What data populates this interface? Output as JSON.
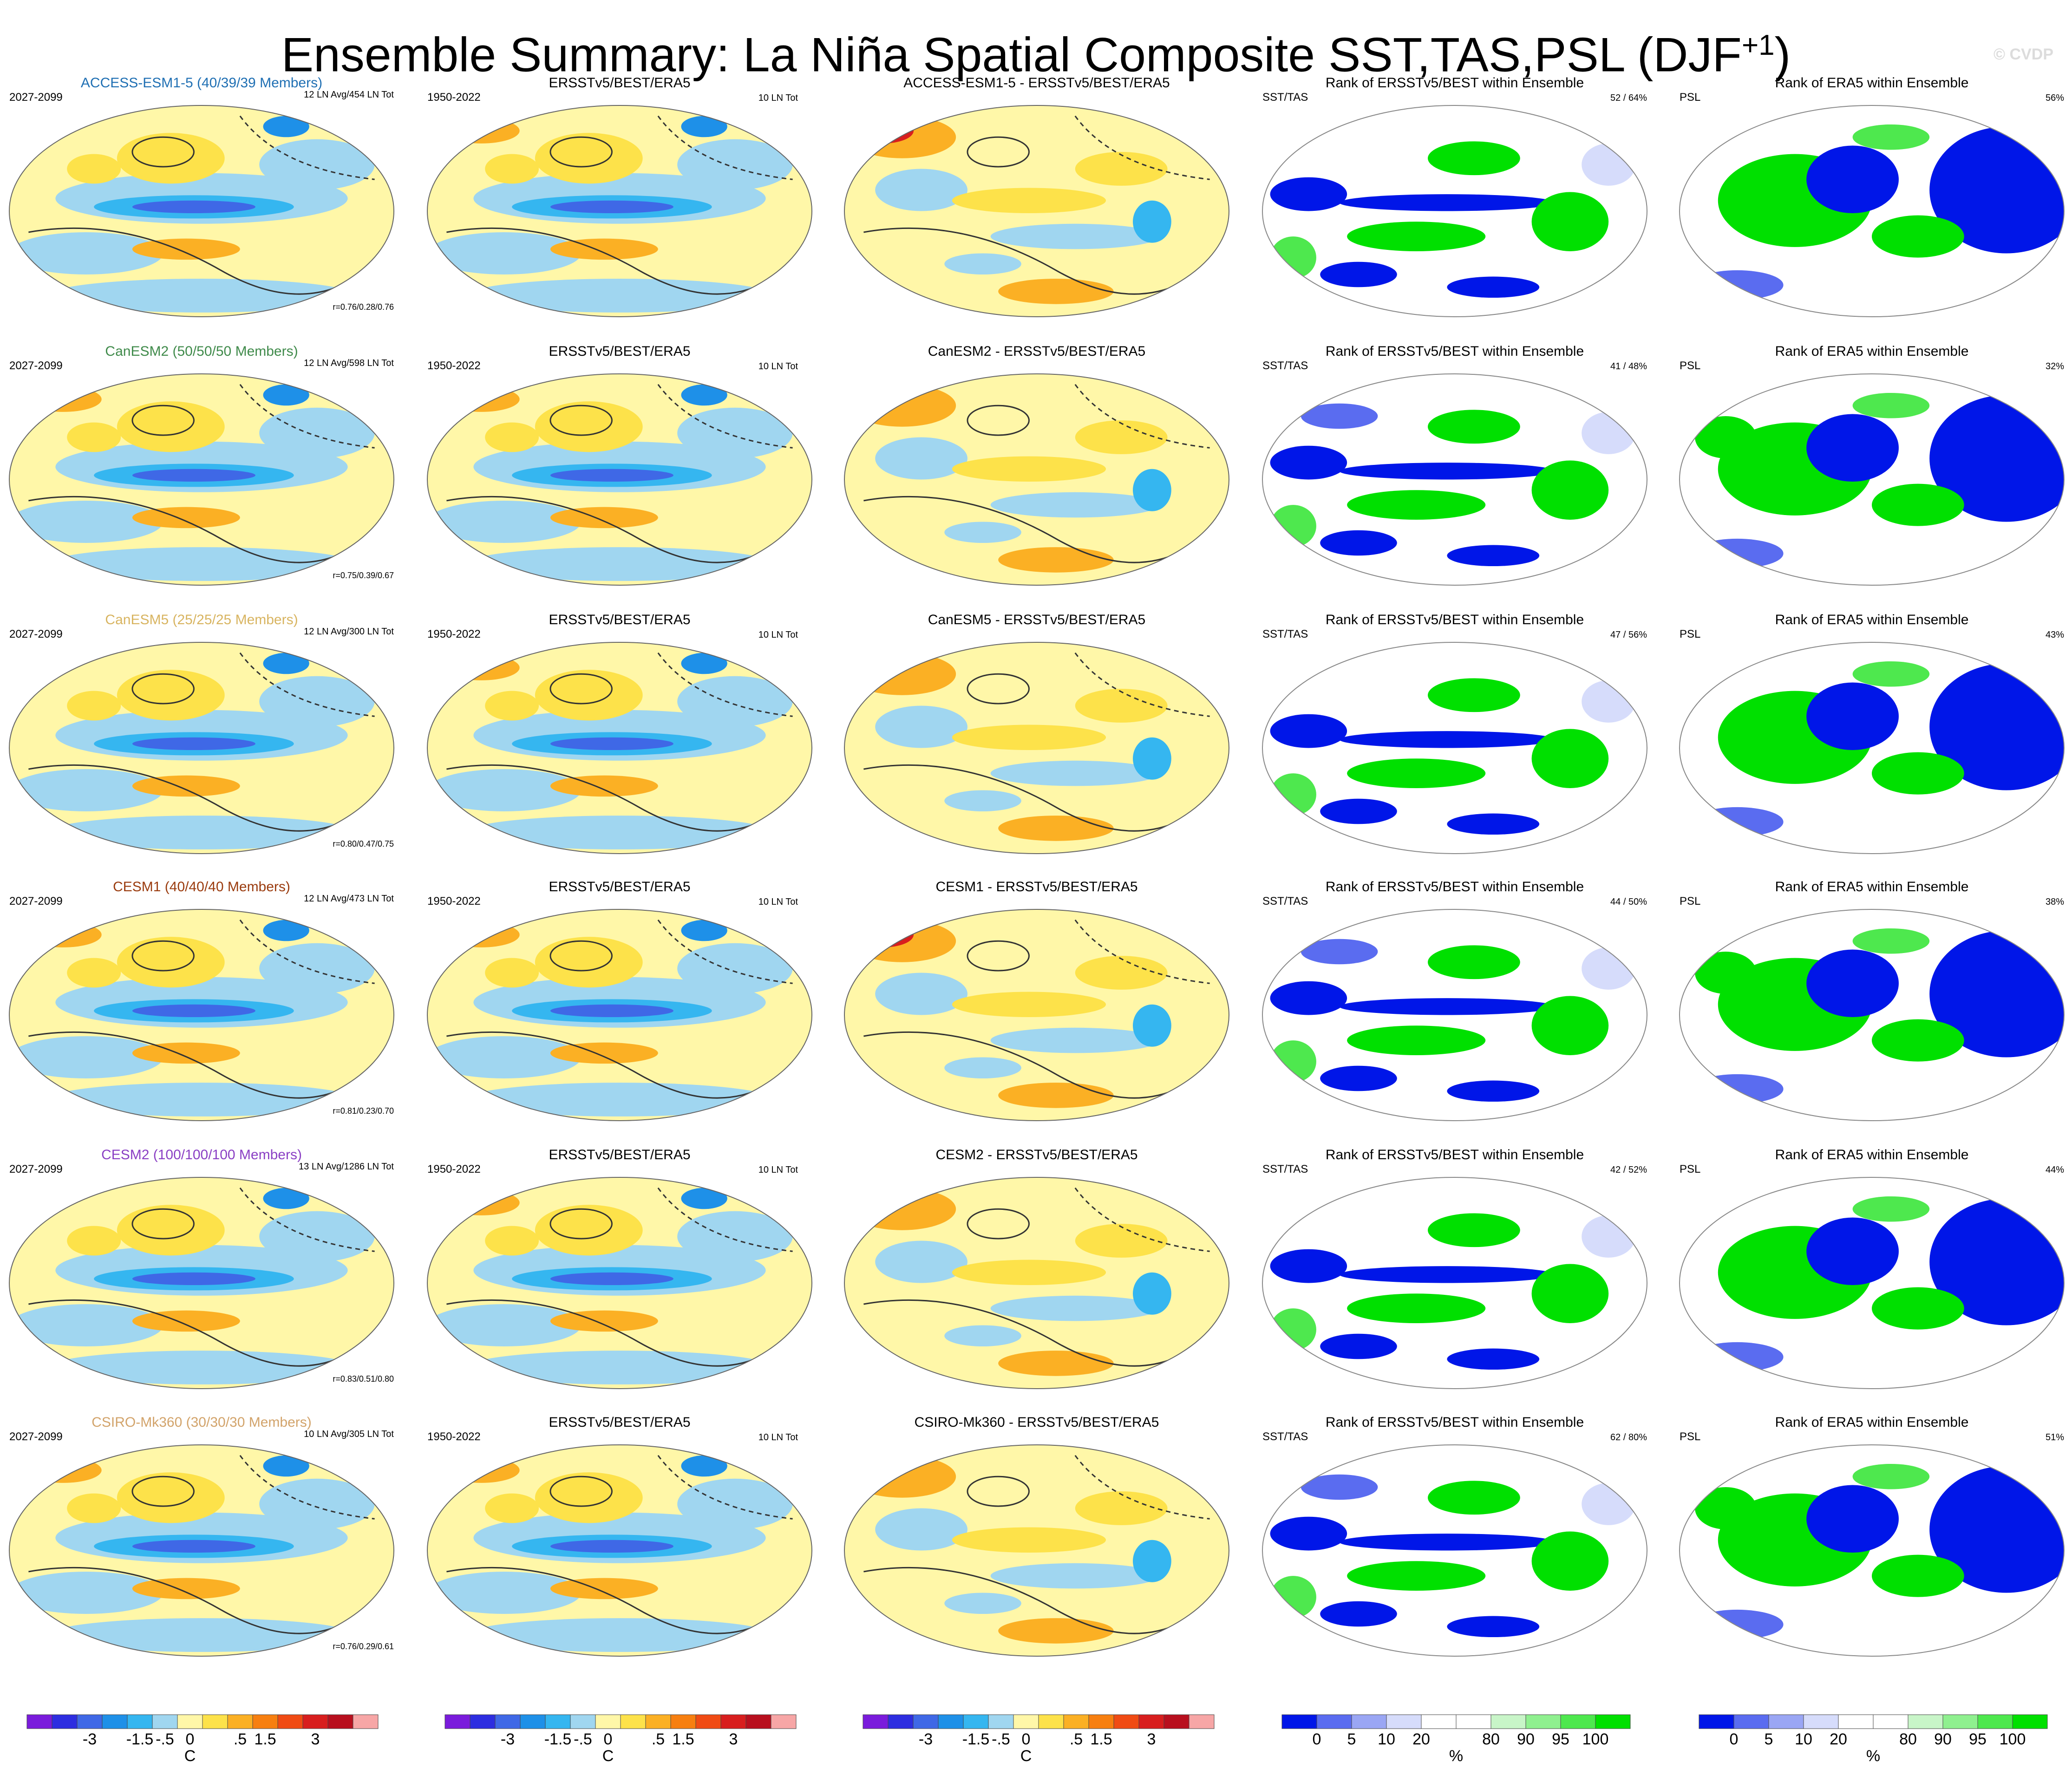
{
  "page": {
    "title_main": "Ensemble Summary: La Niña Spatial Composite SST,TAS,PSL (DJF",
    "title_sup": "+1",
    "title_close": ")",
    "watermark": "© CVDP"
  },
  "colors": {
    "diverging": [
      "#7a1bdc",
      "#2d2de0",
      "#3f68e6",
      "#1e90e8",
      "#35b6f0",
      "#a0d6f0",
      "#fff7a8",
      "#fde24a",
      "#fbb024",
      "#f77f10",
      "#f04b14",
      "#d81e1e",
      "#b80f1e",
      "#f7a6a6"
    ],
    "rank": [
      "#0016e8",
      "#5a6cf0",
      "#9aa6f4",
      "#d6dcfb",
      "#ffffff",
      "#ffffff",
      "#c8f5c8",
      "#8ff08f",
      "#4ee84e",
      "#00e000"
    ],
    "ocean_light": "#a0d6f0",
    "land_bg": "#ffffff"
  },
  "chart_data": {
    "type": "heatmap",
    "columns": [
      {
        "key": "model",
        "xlabel": "C"
      },
      {
        "key": "obs",
        "title": "ERSSTv5/BEST/ERA5",
        "left": "1950-2022",
        "right": "10 LN Tot",
        "xlabel": "C"
      },
      {
        "key": "diff",
        "xlabel": "C"
      },
      {
        "key": "rank_sst",
        "title": "Rank of ERSSTv5/BEST within Ensemble",
        "left": "SST/TAS",
        "xlabel": "%"
      },
      {
        "key": "rank_psl",
        "title": "Rank of ERA5 within Ensemble",
        "left": "PSL",
        "xlabel": "%"
      }
    ],
    "rows": [
      {
        "model": "ACCESS-ESM1-5 (40/39/39 Members)",
        "model_color": "#1f6fb3",
        "period": "2027-2099",
        "avg": "12 LN Avg/454 LN Tot",
        "r": "r=0.76/0.28/0.76",
        "diff": "ACCESS-ESM1-5 - ERSSTv5/BEST/ERA5",
        "rank_sst": "52 /  64%",
        "rank_psl": "56%"
      },
      {
        "model": "CanESM2 (50/50/50 Members)",
        "model_color": "#3f8a4a",
        "period": "2027-2099",
        "avg": "12 LN Avg/598 LN Tot",
        "r": "r=0.75/0.39/0.67",
        "diff": "CanESM2 - ERSSTv5/BEST/ERA5",
        "rank_sst": "41 /  48%",
        "rank_psl": "32%"
      },
      {
        "model": "CanESM5 (25/25/25 Members)",
        "model_color": "#d8b460",
        "period": "2027-2099",
        "avg": "12 LN Avg/300 LN Tot",
        "r": "r=0.80/0.47/0.75",
        "diff": "CanESM5 - ERSSTv5/BEST/ERA5",
        "rank_sst": "47 /  56%",
        "rank_psl": "43%"
      },
      {
        "model": "CESM1 (40/40/40 Members)",
        "model_color": "#9a3b0e",
        "period": "2027-2099",
        "avg": "12 LN Avg/473 LN Tot",
        "r": "r=0.81/0.23/0.70",
        "diff": "CESM1 - ERSSTv5/BEST/ERA5",
        "rank_sst": "44 /  50%",
        "rank_psl": "38%"
      },
      {
        "model": "CESM2 (100/100/100 Members)",
        "model_color": "#8a3fc4",
        "period": "2027-2099",
        "avg": "13 LN Avg/1286 LN Tot",
        "r": "r=0.83/0.51/0.80",
        "diff": "CESM2 - ERSSTv5/BEST/ERA5",
        "rank_sst": "42 /  52%",
        "rank_psl": "44%"
      },
      {
        "model": "CSIRO-Mk360 (30/30/30 Members)",
        "model_color": "#d2a36a",
        "period": "2027-2099",
        "avg": "10 LN Avg/305 LN Tot",
        "r": "r=0.76/0.29/0.61",
        "diff": "CSIRO-Mk360 - ERSSTv5/BEST/ERA5",
        "rank_sst": "62 /  80%",
        "rank_psl": "51%"
      }
    ],
    "colorbar_diverging": {
      "ticks": [
        "-3",
        "-1.5",
        "-.5",
        "0",
        ".5",
        "1.5",
        "3"
      ],
      "units": "C"
    },
    "colorbar_rank": {
      "ticks": [
        "0",
        "5",
        "10",
        "20",
        "80",
        "90",
        "95",
        "100"
      ],
      "units": "%"
    }
  }
}
